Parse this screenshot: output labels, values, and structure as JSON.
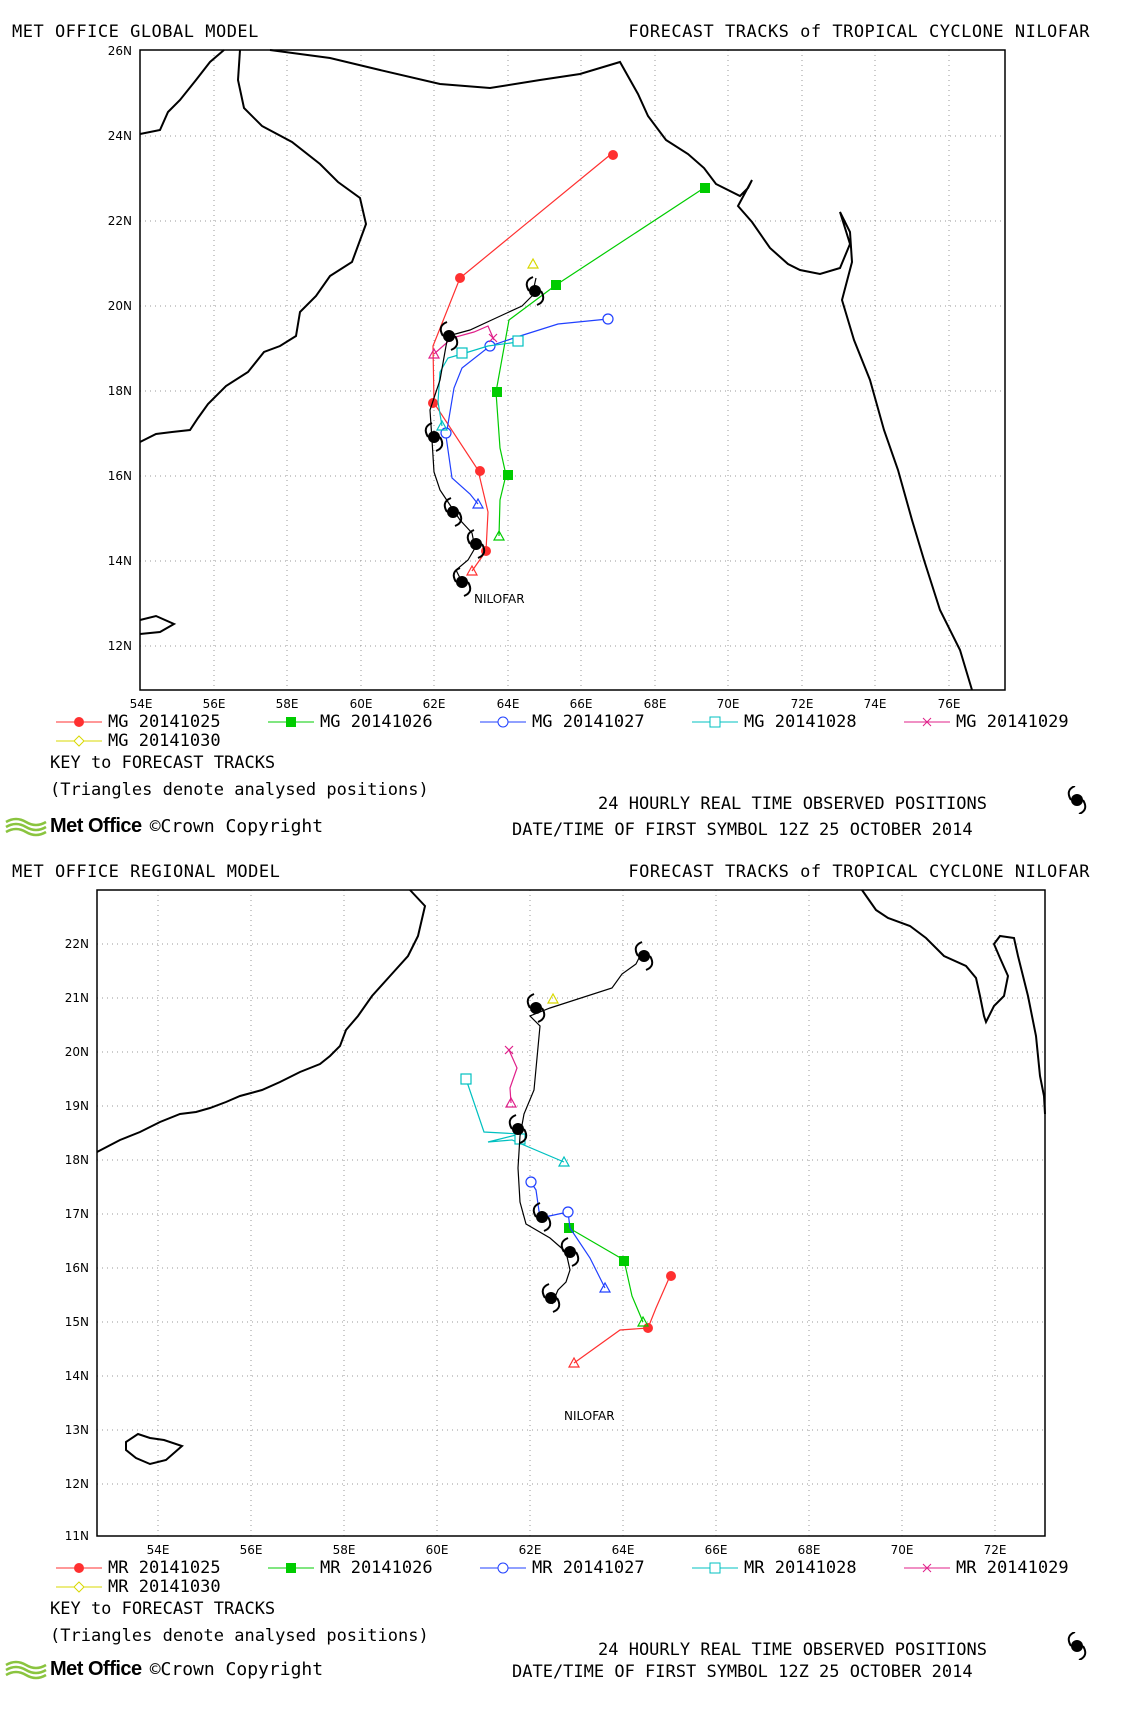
{
  "panels": [
    {
      "id": "global",
      "header_left": "MET OFFICE GLOBAL MODEL",
      "header_right": "FORECAST TRACKS of TROPICAL CYCLONE NILOFAR",
      "xticks": [
        "54E",
        "56E",
        "58E",
        "60E",
        "62E",
        "64E",
        "66E",
        "68E",
        "70E",
        "72E",
        "74E",
        "76E"
      ],
      "yticks": [
        "12N",
        "14N",
        "16N",
        "18N",
        "20N",
        "22N",
        "24N",
        "26N"
      ],
      "storm_label": "NILOFAR",
      "legend": [
        {
          "label": "MG 20141025",
          "color": "#ff3030",
          "marker": "dot"
        },
        {
          "label": "MG 20141026",
          "color": "#00cc00",
          "marker": "square"
        },
        {
          "label": "MG 20141027",
          "color": "#2040ff",
          "marker": "circle"
        },
        {
          "label": "MG 20141028",
          "color": "#00c0c0",
          "marker": "open-square"
        },
        {
          "label": "MG 20141029",
          "color": "#e0208a",
          "marker": "x"
        },
        {
          "label": "MG 20141030",
          "color": "#d8d800",
          "marker": "diamond"
        }
      ],
      "key_text": "KEY to FORECAST TRACKS",
      "note_text": "(Triangles denote analysed positions)",
      "observed_text": "24 HOURLY REAL TIME OBSERVED POSITIONS",
      "first_symbol_text": "DATE/TIME OF FIRST SYMBOL 12Z 25 OCTOBER 2014",
      "brand": "Met Office",
      "copyright": "©Crown Copyright"
    },
    {
      "id": "regional",
      "header_left": "MET OFFICE REGIONAL MODEL",
      "header_right": "FORECAST TRACKS of TROPICAL CYCLONE NILOFAR",
      "xticks": [
        "54E",
        "56E",
        "58E",
        "60E",
        "62E",
        "64E",
        "66E",
        "68E",
        "70E",
        "72E"
      ],
      "yticks": [
        "11N",
        "12N",
        "13N",
        "14N",
        "15N",
        "16N",
        "17N",
        "18N",
        "19N",
        "20N",
        "21N",
        "22N"
      ],
      "storm_label": "NILOFAR",
      "legend": [
        {
          "label": "MR 20141025",
          "color": "#ff3030",
          "marker": "dot"
        },
        {
          "label": "MR 20141026",
          "color": "#00cc00",
          "marker": "square"
        },
        {
          "label": "MR 20141027",
          "color": "#2040ff",
          "marker": "circle"
        },
        {
          "label": "MR 20141028",
          "color": "#00c0c0",
          "marker": "open-square"
        },
        {
          "label": "MR 20141029",
          "color": "#e0208a",
          "marker": "x"
        },
        {
          "label": "MR 20141030",
          "color": "#d8d800",
          "marker": "diamond"
        }
      ],
      "key_text": "KEY to FORECAST TRACKS",
      "note_text": "(Triangles denote analysed positions)",
      "observed_text": "24 HOURLY REAL TIME OBSERVED POSITIONS",
      "first_symbol_text": "DATE/TIME OF FIRST SYMBOL 12Z 25 OCTOBER 2014",
      "brand": "Met Office",
      "copyright": "©Crown Copyright"
    }
  ]
}
